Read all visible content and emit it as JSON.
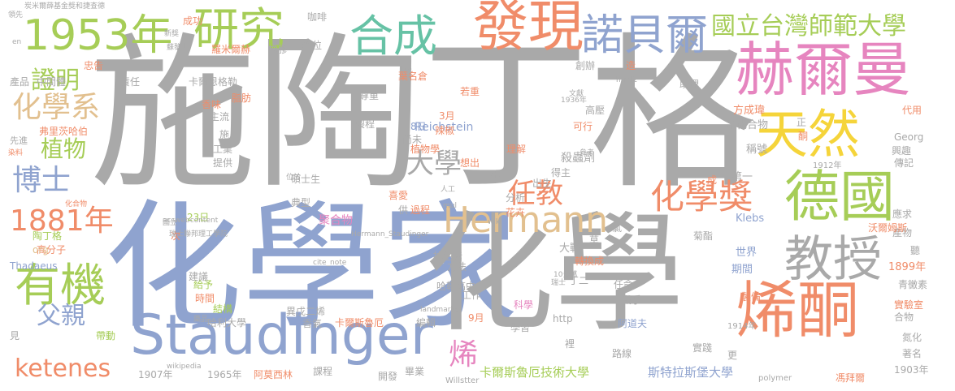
{
  "palette": {
    "gray": "#a9a9a9",
    "blue": "#8fa3cf",
    "orange": "#f08c69",
    "green": "#a6cd57",
    "yellow": "#f5d43a",
    "pink": "#e685bf",
    "teal": "#66c2a5",
    "tan": "#e2c08f",
    "lightgray": "#b8b8b8"
  },
  "words": [
    "施陶丁格",
    "化學家",
    "化學",
    "Staudinger",
    "赫爾曼",
    "天然",
    "德國",
    "烯酮",
    "教授",
    "發現",
    "合成",
    "研究",
    "1953年",
    "諾貝爾",
    "國立台灣師範大學",
    "化學獎",
    "有機",
    "Hermann",
    "大學",
    "化學系",
    "博士",
    "1881年",
    "植物",
    "證明",
    "父親",
    "ketenes",
    "任教",
    "烯",
    "卡爾斯魯厄技術大學",
    "斯特拉斯堡大學",
    "殺蟲劑",
    "方成瑋",
    "品化合物",
    "稱號",
    "第一",
    "大戰",
    "Klebs",
    "世界",
    "期間",
    "1899年",
    "Reichstein",
    "聚合物",
    "羅米爾赫",
    "橡膠",
    "弗里茨哈伯",
    "先進",
    "產品",
    "中間體",
    "責任",
    "卡爾恩格勒",
    "脂肪",
    "主流",
    "施",
    "工業",
    "提供",
    "時間",
    "給予",
    "建議",
    "結構",
    "哈利大學",
    "帶動",
    "高分子",
    "陶丁格",
    "org",
    "Thadaeus",
    "1907年",
    "1965年",
    "阿莫西林",
    "課程",
    "開發",
    "畢業",
    "Willstter",
    "學位",
    "助理",
    "香味",
    "成功",
    "咖啡",
    "出生",
    "得主",
    "理解",
    "可行",
    "高壓",
    "辣椒",
    "尚未",
    "植物學",
    "8日",
    "3月",
    "製程",
    "尊重",
    "葉名倉",
    "若重",
    "想出",
    "分析",
    "花卉",
    "喜愛",
    "過程",
    "供",
    "抗生素",
    "方法",
    "哈勒高中",
    "工作",
    "異戊二烯",
    "香氣",
    "卡爾斯魯厄",
    "編輯",
    "9月",
    "科學",
    "學習",
    "裡",
    "阿道夫",
    "路線",
    "實踐",
    "更",
    "戰爭",
    "任命",
    "丁二",
    "轉換成",
    "草",
    "氯",
    "菊酯",
    "製備",
    "實驗室",
    "合物",
    "氮化",
    "著名",
    "1903年",
    "馮拜爾",
    "1914年",
    "polymer",
    "應求",
    "產物",
    "聽",
    "青黴素",
    "沃爾姆斯",
    "1912年",
    "代用",
    "興趣",
    "傳記",
    "Georg",
    "正",
    "酮",
    "成",
    "碩士生",
    "典型",
    "23日",
    "次",
    "http",
    "忠告",
    "造",
    "創辦",
    "life",
    "html2",
    "文獻",
    "參考",
    "1936年",
    "landmarks",
    "wikipedia",
    "acswebcontent",
    "cite_note",
    "Hermann_Staudinger",
    "瑞士",
    "藥品",
    "人工",
    "mul",
    "包括",
    "位於",
    "10多萬",
    "wiki",
    "染料",
    "蘇黎世",
    "見",
    "炭米爾薛基金獎和捷查德",
    "新獎",
    "化合物",
    "國立",
    "瑞士聯邦理工學院",
    "en",
    "領先"
  ]
}
